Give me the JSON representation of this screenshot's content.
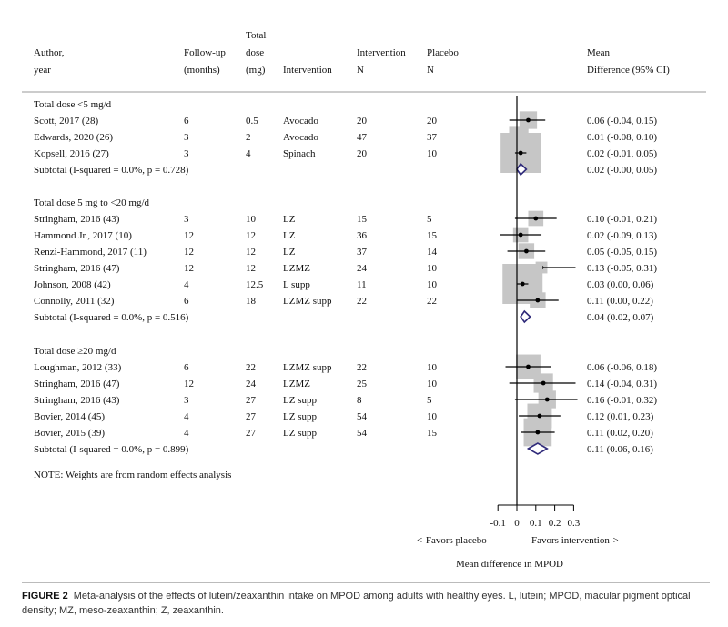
{
  "header": {
    "author": [
      "Author,",
      "year"
    ],
    "followup": [
      "Follow-up",
      "(months)"
    ],
    "dose": [
      "Total",
      "dose",
      "(mg)"
    ],
    "intervention": "Intervention",
    "int_n": [
      "Intervention",
      "N"
    ],
    "plc_n": [
      "Placebo",
      "N"
    ],
    "md": [
      "Mean",
      "Difference (95% CI)"
    ]
  },
  "note": "NOTE: Weights are from random effects analysis",
  "axis": {
    "ticks": [
      "-0.1",
      "0",
      "0.1",
      "0.2",
      "0.3"
    ],
    "favors_left": "<-Favors placebo",
    "favors_right": "Favors intervention->",
    "xlabel": "Mean difference in MPOD"
  },
  "caption": {
    "label": "FIGURE 2",
    "text": "Meta-analysis of the effects of lutein/zeaxanthin intake on MPOD among adults with healthy eyes. L, lutein; MPOD, macular pigment optical density; MZ, meso-zeaxanthin; Z, zeaxanthin."
  },
  "colors": {
    "weight_box": "#c6c6c6",
    "diamond": "#2f2a7a",
    "line": "#000000"
  },
  "chart_data": {
    "type": "forest",
    "xlim": [
      -0.1,
      0.3
    ],
    "reference_line": 0,
    "groups": [
      {
        "label": "Total dose <5 mg/d",
        "studies": [
          {
            "author": "Scott, 2017 (28)",
            "followup": "6",
            "dose": "0.5",
            "intervention": "Avocado",
            "int_n": "20",
            "plc_n": "20",
            "md": 0.06,
            "lo": -0.04,
            "hi": 0.15,
            "ci_text": "0.06 (-0.04, 0.15)",
            "weight": 0.35
          },
          {
            "author": "Edwards, 2020 (26)",
            "followup": "3",
            "dose": "2",
            "intervention": "Avocado",
            "int_n": "47",
            "plc_n": "37",
            "md": 0.01,
            "lo": -0.08,
            "hi": 0.1,
            "ci_text": "0.01 (-0.08, 0.10)",
            "weight": 0.4
          },
          {
            "author": "Kopsell, 2016 (27)",
            "followup": "3",
            "dose": "4",
            "intervention": "Spinach",
            "int_n": "20",
            "plc_n": "10",
            "md": 0.02,
            "lo": -0.01,
            "hi": 0.05,
            "ci_text": "0.02 (-0.01, 0.05)",
            "weight": 1.0
          }
        ],
        "subtotal": {
          "label": "Subtotal  (I-squared = 0.0%, p = 0.728)",
          "md": 0.02,
          "lo": -0.0,
          "hi": 0.05,
          "ci_text": "0.02 (-0.00, 0.05)"
        }
      },
      {
        "label": "Total dose 5 mg to <20 mg/d",
        "studies": [
          {
            "author": "Stringham, 2016 (43)",
            "followup": "3",
            "dose": "10",
            "intervention": "LZ",
            "int_n": "15",
            "plc_n": "5",
            "md": 0.1,
            "lo": -0.01,
            "hi": 0.21,
            "ci_text": "0.10 (-0.01, 0.21)",
            "weight": 0.28
          },
          {
            "author": "Hammond Jr., 2017 (10)",
            "followup": "12",
            "dose": "12",
            "intervention": "LZ",
            "int_n": "36",
            "plc_n": "15",
            "md": 0.02,
            "lo": -0.09,
            "hi": 0.13,
            "ci_text": "0.02 (-0.09, 0.13)",
            "weight": 0.28
          },
          {
            "author": "Renzi-Hammond, 2017 (11)",
            "followup": "12",
            "dose": "12",
            "intervention": "LZ",
            "int_n": "37",
            "plc_n": "14",
            "md": 0.05,
            "lo": -0.05,
            "hi": 0.15,
            "ci_text": "0.05 (-0.05, 0.15)",
            "weight": 0.3
          },
          {
            "author": "Stringham, 2016 (47)",
            "followup": "12",
            "dose": "12",
            "intervention": "LZMZ",
            "int_n": "24",
            "plc_n": "10",
            "md": 0.13,
            "lo": -0.05,
            "hi": 0.31,
            "ci_text": "0.13 (-0.05, 0.31)",
            "weight": 0.18
          },
          {
            "author": "Johnson, 2008 (42)",
            "followup": "4",
            "dose": "12.5",
            "intervention": "L supp",
            "int_n": "11",
            "plc_n": "10",
            "md": 0.03,
            "lo": 0.0,
            "hi": 0.06,
            "ci_text": "0.03 (0.00, 0.06)",
            "weight": 1.0
          },
          {
            "author": "Connolly, 2011 (32)",
            "followup": "6",
            "dose": "18",
            "intervention": "LZMZ supp",
            "int_n": "22",
            "plc_n": "22",
            "md": 0.11,
            "lo": 0.0,
            "hi": 0.22,
            "ci_text": "0.11 (0.00, 0.22)",
            "weight": 0.3
          }
        ],
        "subtotal": {
          "label": "Subtotal  (I-squared = 0.0%, p = 0.516)",
          "md": 0.04,
          "lo": 0.02,
          "hi": 0.07,
          "ci_text": "0.04 (0.02, 0.07)"
        }
      },
      {
        "label": "Total dose ≥20 mg/d",
        "studies": [
          {
            "author": "Loughman, 2012 (33)",
            "followup": "6",
            "dose": "22",
            "intervention": "LZMZ supp",
            "int_n": "22",
            "plc_n": "10",
            "md": 0.06,
            "lo": -0.06,
            "hi": 0.18,
            "ci_text": "0.06 (-0.06, 0.18)",
            "weight": 0.55
          },
          {
            "author": "Stringham, 2016 (47)",
            "followup": "12",
            "dose": "24",
            "intervention": "LZMZ",
            "int_n": "25",
            "plc_n": "10",
            "md": 0.14,
            "lo": -0.04,
            "hi": 0.31,
            "ci_text": "0.14 (-0.04, 0.31)",
            "weight": 0.4
          },
          {
            "author": "Stringham, 2016 (43)",
            "followup": "3",
            "dose": "27",
            "intervention": "LZ supp",
            "int_n": "8",
            "plc_n": "5",
            "md": 0.16,
            "lo": -0.01,
            "hi": 0.32,
            "ci_text": "0.16 (-0.01, 0.32)",
            "weight": 0.35
          },
          {
            "author": "Bovier, 2014 (45)",
            "followup": "4",
            "dose": "27",
            "intervention": "LZ supp",
            "int_n": "54",
            "plc_n": "10",
            "md": 0.12,
            "lo": 0.01,
            "hi": 0.23,
            "ci_text": "0.12 (0.01, 0.23)",
            "weight": 0.55
          },
          {
            "author": "Bovier, 2015 (39)",
            "followup": "4",
            "dose": "27",
            "intervention": "LZ supp",
            "int_n": "54",
            "plc_n": "15",
            "md": 0.11,
            "lo": 0.02,
            "hi": 0.2,
            "ci_text": "0.11 (0.02, 0.20)",
            "weight": 0.65
          }
        ],
        "subtotal": {
          "label": "Subtotal  (I-squared = 0.0%, p = 0.899)",
          "md": 0.11,
          "lo": 0.06,
          "hi": 0.16,
          "ci_text": "0.11 (0.06, 0.16)"
        }
      }
    ]
  }
}
